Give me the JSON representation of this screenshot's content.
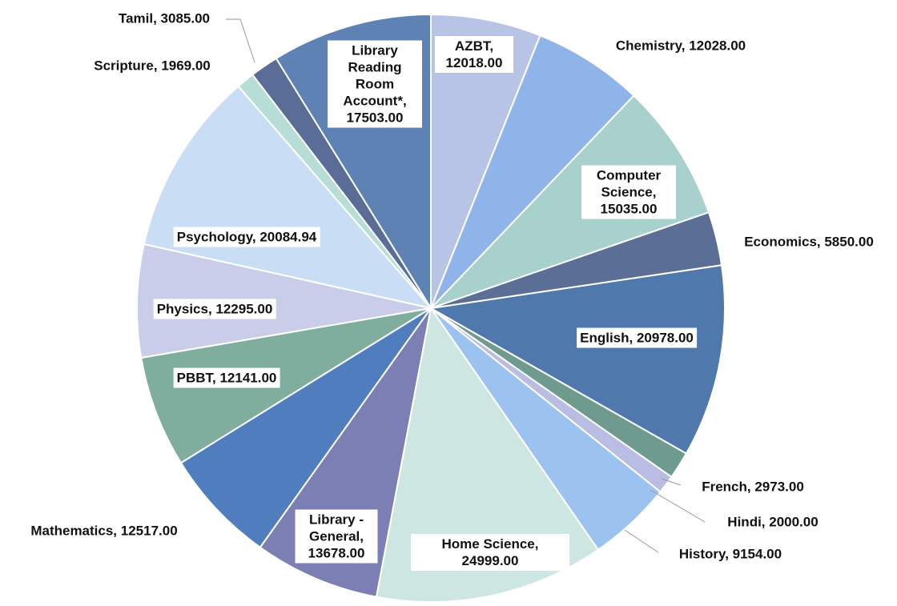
{
  "chart_data": {
    "type": "pie",
    "labels": [
      "AZBT, 12018.00",
      "Chemistry, 12028.00",
      "Computer Science, 15035.00",
      "Economics, 5850.00",
      "English, 20978.00",
      "French, 2973.00",
      "Hindi, 2000.00",
      "History, 9154.00",
      "Home Science, 24999.00",
      "Library - General, 13678.00",
      "Mathematics, 12517.00",
      "PBBT, 12141.00",
      "Physics, 12295.00",
      "Psychology, 20084.94",
      "Scripture, 1969.00",
      "Tamil, 3085.00",
      "Library Reading Room Account*, 17503.00"
    ],
    "values": [
      12018,
      12028,
      15035,
      5850,
      20978,
      2973,
      2000,
      9154,
      24999,
      13678,
      12517,
      12141,
      12295,
      20084.94,
      1969,
      3085,
      17503
    ],
    "colors": [
      "#b7c4e6",
      "#8fb4ea",
      "#a8d0cc",
      "#5b6e96",
      "#4f79ad",
      "#6f9a8e",
      "#b9bde4",
      "#9cc3f0",
      "#cde6e2",
      "#7b7fb3",
      "#4f7dbd",
      "#7fae9e",
      "#c9cde9",
      "#c9def5",
      "#b6ddd6",
      "#5a6d97",
      "#5f82b4"
    ]
  }
}
